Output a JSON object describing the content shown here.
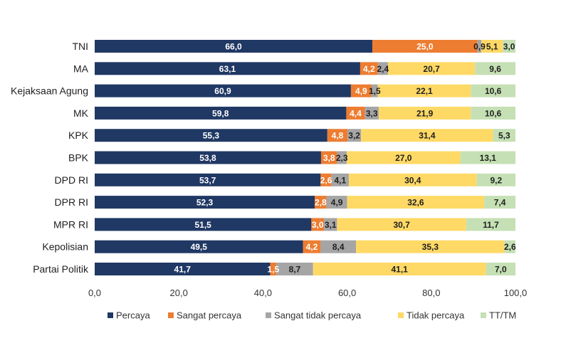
{
  "chart_data": {
    "type": "bar",
    "orientation": "horizontal",
    "stacked": true,
    "categories": [
      "TNI",
      "MA",
      "Kejaksaan Agung",
      "MK",
      "KPK",
      "BPK",
      "DPD RI",
      "DPR RI",
      "MPR RI",
      "Kepolisian",
      "Partai Politik"
    ],
    "series": [
      {
        "name": "Percaya",
        "color": "#203864",
        "label_color": "#ffffff",
        "values": [
          66.0,
          63.1,
          60.9,
          59.8,
          55.3,
          53.8,
          53.7,
          52.3,
          51.5,
          49.5,
          41.7
        ],
        "labels": [
          "66,0",
          "63,1",
          "60,9",
          "59,8",
          "55,3",
          "53,8",
          "53,7",
          "52,3",
          "51,5",
          "49,5",
          "41,7"
        ]
      },
      {
        "name": "Sangat percaya",
        "color": "#ed7d31",
        "label_color": "#ffffff",
        "values": [
          25.0,
          4.2,
          4.9,
          4.4,
          4.8,
          3.8,
          2.6,
          2.8,
          3.0,
          4.2,
          1.5
        ],
        "labels": [
          "25,0",
          "4,2",
          "4,9",
          "4,4",
          "4,8",
          "3,8",
          "2,6",
          "2,8",
          "3,0",
          "4,2",
          "1,5"
        ]
      },
      {
        "name": "Sangat tidak percaya",
        "color": "#a5a5a5",
        "label_color": "#1f1f1f",
        "values": [
          0.9,
          2.4,
          1.5,
          3.3,
          3.2,
          2.3,
          4.1,
          4.9,
          3.1,
          8.4,
          8.7
        ],
        "labels": [
          "0,9",
          "2,4",
          "1,5",
          "3,3",
          "3,2",
          "2,3",
          "4,1",
          "4,9",
          "3,1",
          "8,4",
          "8,7"
        ]
      },
      {
        "name": "Tidak percaya",
        "color": "#ffd966",
        "label_color": "#1f1f1f",
        "values": [
          5.1,
          20.7,
          22.1,
          21.9,
          31.4,
          27.0,
          30.4,
          32.6,
          30.7,
          35.3,
          41.1
        ],
        "labels": [
          "5,1",
          "20,7",
          "22,1",
          "21,9",
          "31,4",
          "27,0",
          "30,4",
          "32,6",
          "30,7",
          "35,3",
          "41,1"
        ]
      },
      {
        "name": "TT/TM",
        "color": "#c5e0b4",
        "label_color": "#1f1f1f",
        "values": [
          3.0,
          9.6,
          10.6,
          10.6,
          5.3,
          13.1,
          9.2,
          7.4,
          11.7,
          2.6,
          7.0
        ],
        "labels": [
          "3,0",
          "9,6",
          "10,6",
          "10,6",
          "5,3",
          "13,1",
          "9,2",
          "7,4",
          "11,7",
          "2,6",
          "7,0"
        ]
      }
    ],
    "xlim": [
      0,
      100
    ],
    "xticks": [
      0,
      20,
      40,
      60,
      80,
      100
    ],
    "xtick_labels": [
      "0,0",
      "20,0",
      "40,0",
      "60,0",
      "80,0",
      "100,0"
    ],
    "title": "",
    "xlabel": "",
    "ylabel": "",
    "grid": false,
    "legend_position": "bottom"
  }
}
